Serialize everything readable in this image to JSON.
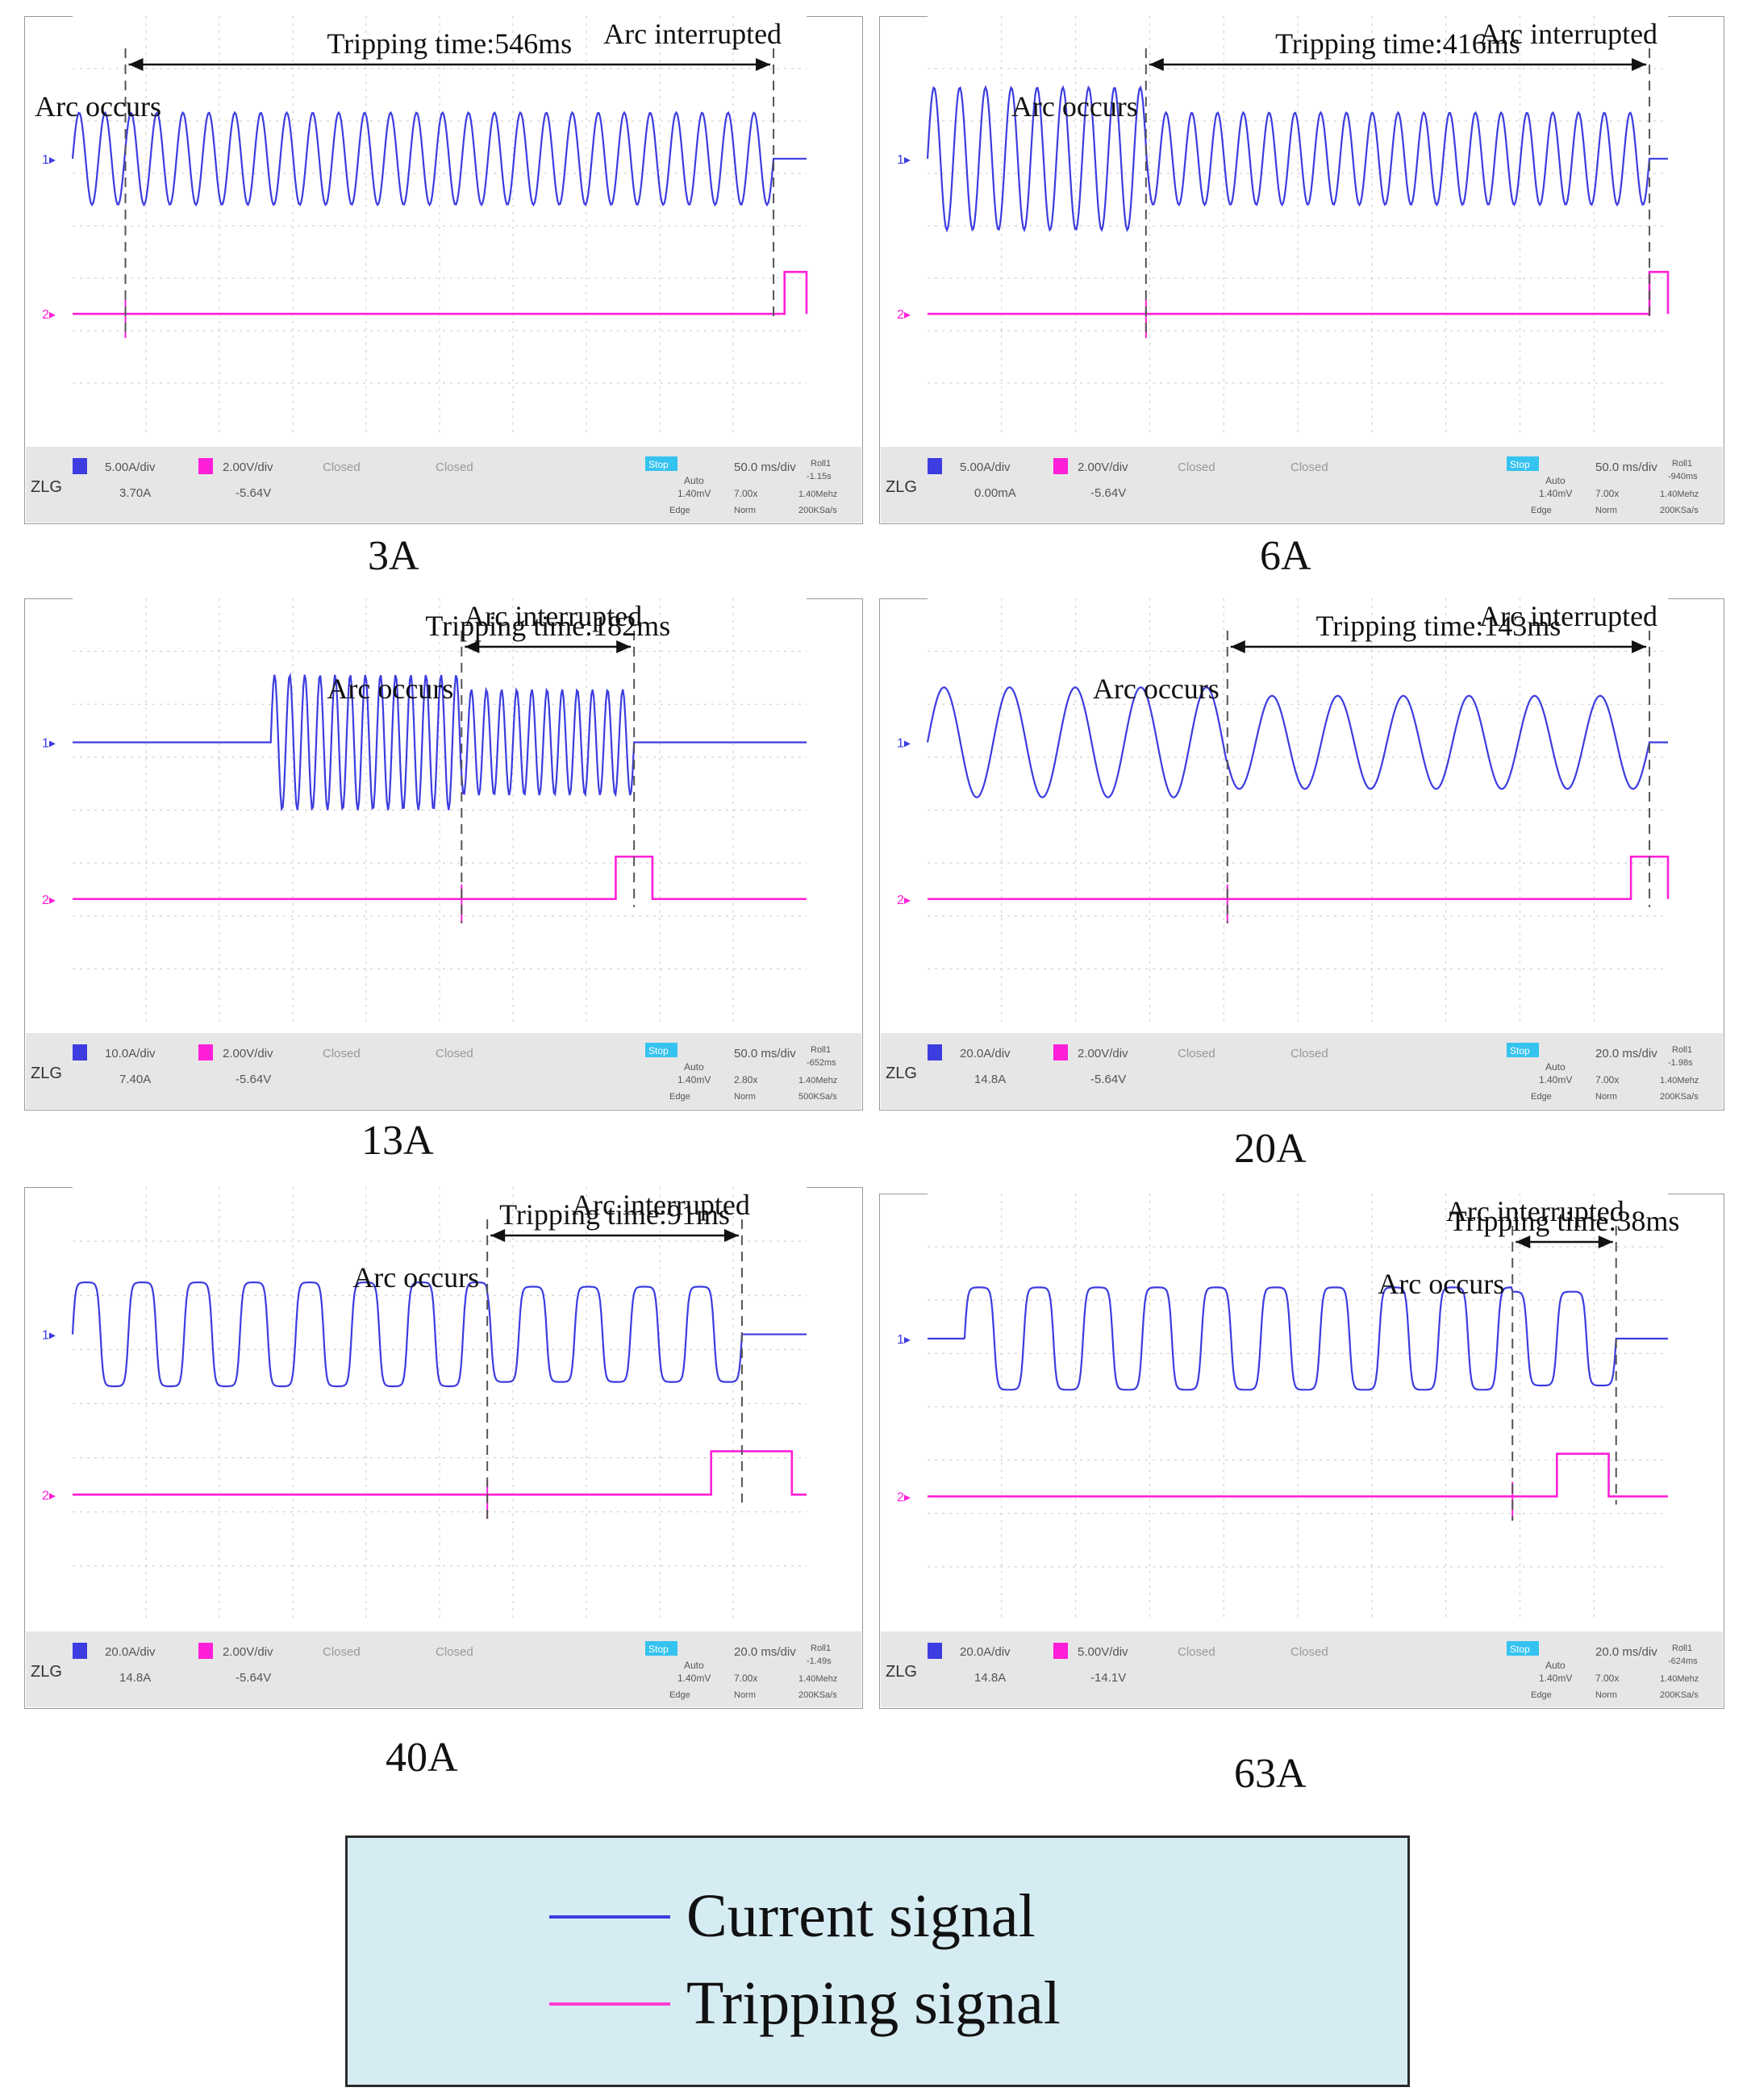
{
  "chart_data": [
    {
      "type": "line",
      "title": "3A",
      "current_label": "1",
      "trip_label": "2",
      "arc_occurs_label": "Arc occurs",
      "tripping_label": "Tripping time:546ms",
      "interrupted_label": "Arc interrupted",
      "tripping_time_ms": 546,
      "time_div": "50.0 ms/div",
      "current_div": "5.00A/div",
      "current_offset": "3.70A",
      "trip_div": "2.00V/div",
      "trip_offset": "-5.64V",
      "ch3": "Closed",
      "ch4": "Closed",
      "status": "Stop",
      "trigger_mode": "Auto",
      "trigger_level": "1.40mV",
      "trigger_type": "Edge",
      "zoom": "7.00x",
      "acq_mode": "Norm",
      "sample_rate": "200KSa/s",
      "roll": "Roll1",
      "roll_value": "-1.15s",
      "freq": "1.40Mehz"
    },
    {
      "type": "line",
      "title": "6A",
      "current_label": "1",
      "trip_label": "2",
      "arc_occurs_label": "Arc occurs",
      "tripping_label": "Tripping time:416ms",
      "interrupted_label": "Arc interrupted",
      "tripping_time_ms": 416,
      "time_div": "50.0 ms/div",
      "current_div": "5.00A/div",
      "current_offset": "0.00mA",
      "trip_div": "2.00V/div",
      "trip_offset": "-5.64V",
      "ch3": "Closed",
      "ch4": "Closed",
      "status": "Stop",
      "trigger_mode": "Auto",
      "trigger_level": "1.40mV",
      "trigger_type": "Edge",
      "zoom": "7.00x",
      "acq_mode": "Norm",
      "sample_rate": "200KSa/s",
      "roll": "Roll1",
      "roll_value": "-940ms",
      "freq": "1.40Mehz"
    },
    {
      "type": "line",
      "title": "13A",
      "current_label": "1",
      "trip_label": "2",
      "arc_occurs_label": "Arc occurs",
      "tripping_label": "Tripping time:182ms",
      "interrupted_label": "Arc interrupted",
      "tripping_time_ms": 182,
      "time_div": "50.0 ms/div",
      "current_div": "10.0A/div",
      "current_offset": "7.40A",
      "trip_div": "2.00V/div",
      "trip_offset": "-5.64V",
      "ch3": "Closed",
      "ch4": "Closed",
      "status": "Stop",
      "trigger_mode": "Auto",
      "trigger_level": "1.40mV",
      "trigger_type": "Edge",
      "zoom": "2.80x",
      "acq_mode": "Norm",
      "sample_rate": "500KSa/s",
      "roll": "Roll1",
      "roll_value": "-652ms",
      "freq": "1.40Mehz"
    },
    {
      "type": "line",
      "title": "20A",
      "current_label": "1",
      "trip_label": "2",
      "arc_occurs_label": "Arc occurs",
      "tripping_label": "Tripping time:143ms",
      "interrupted_label": "Arc interrupted",
      "tripping_time_ms": 143,
      "time_div": "20.0 ms/div",
      "current_div": "20.0A/div",
      "current_offset": "14.8A",
      "trip_div": "2.00V/div",
      "trip_offset": "-5.64V",
      "ch3": "Closed",
      "ch4": "Closed",
      "status": "Stop",
      "trigger_mode": "Auto",
      "trigger_level": "1.40mV",
      "trigger_type": "Edge",
      "zoom": "7.00x",
      "acq_mode": "Norm",
      "sample_rate": "200KSa/s",
      "roll": "Roll1",
      "roll_value": "-1.98s",
      "freq": "1.40Mehz"
    },
    {
      "type": "line",
      "title": "40A",
      "current_label": "1",
      "trip_label": "2",
      "arc_occurs_label": "Arc occurs",
      "tripping_label": "Tripping time:91ms",
      "interrupted_label": "Arc interrupted",
      "tripping_time_ms": 91,
      "time_div": "20.0 ms/div",
      "current_div": "20.0A/div",
      "current_offset": "14.8A",
      "trip_div": "2.00V/div",
      "trip_offset": "-5.64V",
      "ch3": "Closed",
      "ch4": "Closed",
      "status": "Stop",
      "trigger_mode": "Auto",
      "trigger_level": "1.40mV",
      "trigger_type": "Edge",
      "zoom": "7.00x",
      "acq_mode": "Norm",
      "sample_rate": "200KSa/s",
      "roll": "Roll1",
      "roll_value": "-1.49s",
      "freq": "1.40Mehz"
    },
    {
      "type": "line",
      "title": "63A",
      "current_label": "1",
      "trip_label": "2",
      "arc_occurs_label": "Arc occurs",
      "tripping_label": "Tripping time:38ms",
      "interrupted_label": "Arc interrupted",
      "tripping_time_ms": 38,
      "time_div": "20.0 ms/div",
      "current_div": "20.0A/div",
      "current_offset": "14.8A",
      "trip_div": "5.00V/div",
      "trip_offset": "-14.1V",
      "ch3": "Closed",
      "ch4": "Closed",
      "status": "Stop",
      "trigger_mode": "Auto",
      "trigger_level": "1.40mV",
      "trigger_type": "Edge",
      "zoom": "7.00x",
      "acq_mode": "Norm",
      "sample_rate": "200KSa/s",
      "roll": "Roll1",
      "roll_value": "-624ms",
      "freq": "1.40Mehz"
    }
  ],
  "legend": {
    "items": [
      {
        "label": "Current signal",
        "color": "#3c3ce0"
      },
      {
        "label": "Tripping signal",
        "color": "#ff3cd2"
      }
    ]
  },
  "colors": {
    "current": "#3c3ce0",
    "tripping": "#ff1fd8",
    "grid": "#c8c8c8",
    "screen": "#ffffff",
    "status_bar": "#e6e6e6"
  }
}
